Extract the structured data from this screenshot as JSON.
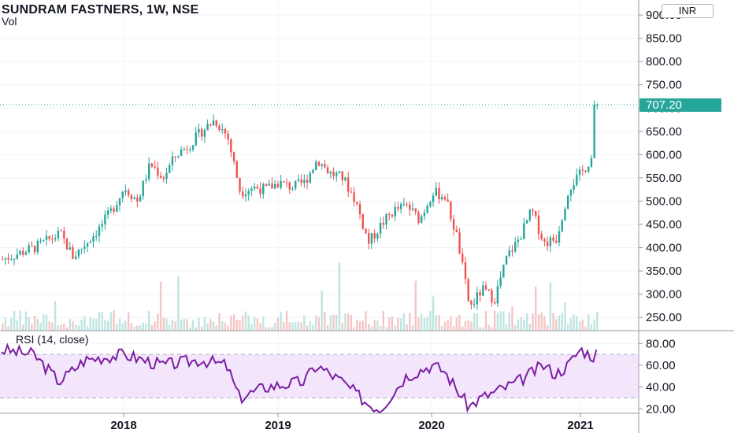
{
  "header": {
    "title": "SUNDRAM FASTNERS, 1W, NSE",
    "volume_label": "Vol",
    "currency": "INR"
  },
  "price_axis": {
    "ticks": [
      "900.00",
      "850.00",
      "800.00",
      "750.00",
      "700.00",
      "650.00",
      "600.00",
      "550.00",
      "500.00",
      "450.00",
      "400.00",
      "350.00",
      "300.00",
      "250.00"
    ],
    "last_price": "707.20"
  },
  "rsi": {
    "label": "RSI (14, close)",
    "ticks": [
      "80.00",
      "60.00",
      "40.00",
      "20.00"
    ],
    "upper_band": 70,
    "lower_band": 30
  },
  "time_axis": {
    "ticks": [
      "2018",
      "2019",
      "2020",
      "2021"
    ]
  },
  "colors": {
    "up": "#26a69a",
    "down": "#ef5350",
    "rsi_line": "#7b1fa2",
    "rsi_band": "#f3e5fb",
    "last_price_line": "#26a69a"
  },
  "chart_data": {
    "type": "candlestick",
    "price_path": [
      {
        "date": "2017-03",
        "close": 370
      },
      {
        "date": "2017-06",
        "close": 400
      },
      {
        "date": "2017-08",
        "close": 430
      },
      {
        "date": "2017-09",
        "close": 380
      },
      {
        "date": "2017-11",
        "close": 440
      },
      {
        "date": "2017-12",
        "close": 480
      },
      {
        "date": "2018-01",
        "close": 530
      },
      {
        "date": "2018-02",
        "close": 500
      },
      {
        "date": "2018-03",
        "close": 580
      },
      {
        "date": "2018-04",
        "close": 550
      },
      {
        "date": "2018-05",
        "close": 600
      },
      {
        "date": "2018-06",
        "close": 620
      },
      {
        "date": "2018-07",
        "close": 650
      },
      {
        "date": "2018-08",
        "close": 675
      },
      {
        "date": "2018-09",
        "close": 640
      },
      {
        "date": "2018-10",
        "close": 520
      },
      {
        "date": "2018-11",
        "close": 530
      },
      {
        "date": "2018-12",
        "close": 525
      },
      {
        "date": "2019-01",
        "close": 540
      },
      {
        "date": "2019-02",
        "close": 530
      },
      {
        "date": "2019-03",
        "close": 540
      },
      {
        "date": "2019-04",
        "close": 590
      },
      {
        "date": "2019-05",
        "close": 560
      },
      {
        "date": "2019-06",
        "close": 550
      },
      {
        "date": "2019-07",
        "close": 500
      },
      {
        "date": "2019-08",
        "close": 410
      },
      {
        "date": "2019-09",
        "close": 450
      },
      {
        "date": "2019-10",
        "close": 480
      },
      {
        "date": "2019-11",
        "close": 490
      },
      {
        "date": "2019-12",
        "close": 460
      },
      {
        "date": "2020-01",
        "close": 520
      },
      {
        "date": "2020-02",
        "close": 510
      },
      {
        "date": "2020-03",
        "close": 420
      },
      {
        "date": "2020-04",
        "close": 270
      },
      {
        "date": "2020-05",
        "close": 310
      },
      {
        "date": "2020-06",
        "close": 290
      },
      {
        "date": "2020-07",
        "close": 380
      },
      {
        "date": "2020-08",
        "close": 420
      },
      {
        "date": "2020-09",
        "close": 480
      },
      {
        "date": "2020-10",
        "close": 410
      },
      {
        "date": "2020-11",
        "close": 420
      },
      {
        "date": "2020-12",
        "close": 530
      },
      {
        "date": "2021-01",
        "close": 560
      },
      {
        "date": "2021-02",
        "close": 600
      },
      {
        "date": "2021-03",
        "close": 707.2
      }
    ],
    "rsi_path": [
      {
        "date": "2017-03",
        "rsi": 75
      },
      {
        "date": "2017-06",
        "rsi": 70
      },
      {
        "date": "2017-08",
        "rsi": 45
      },
      {
        "date": "2017-10",
        "rsi": 65
      },
      {
        "date": "2018-01",
        "rsi": 70
      },
      {
        "date": "2018-04",
        "rsi": 60
      },
      {
        "date": "2018-07",
        "rsi": 65
      },
      {
        "date": "2018-09",
        "rsi": 60
      },
      {
        "date": "2018-10",
        "rsi": 30
      },
      {
        "date": "2018-12",
        "rsi": 40
      },
      {
        "date": "2019-03",
        "rsi": 45
      },
      {
        "date": "2019-04",
        "rsi": 60
      },
      {
        "date": "2019-06",
        "rsi": 45
      },
      {
        "date": "2019-08",
        "rsi": 25
      },
      {
        "date": "2019-09",
        "rsi": 20
      },
      {
        "date": "2019-11",
        "rsi": 50
      },
      {
        "date": "2020-01",
        "rsi": 60
      },
      {
        "date": "2020-02",
        "rsi": 55
      },
      {
        "date": "2020-04",
        "rsi": 22
      },
      {
        "date": "2020-05",
        "rsi": 30
      },
      {
        "date": "2020-08",
        "rsi": 45
      },
      {
        "date": "2020-10",
        "rsi": 60
      },
      {
        "date": "2020-11",
        "rsi": 52
      },
      {
        "date": "2020-12",
        "rsi": 60
      },
      {
        "date": "2021-01",
        "rsi": 75
      },
      {
        "date": "2021-02",
        "rsi": 68
      },
      {
        "date": "2021-03",
        "rsi": 80
      }
    ],
    "ylim": [
      225,
      910
    ],
    "rsi_ylim": [
      12,
      88
    ],
    "grid": true
  }
}
